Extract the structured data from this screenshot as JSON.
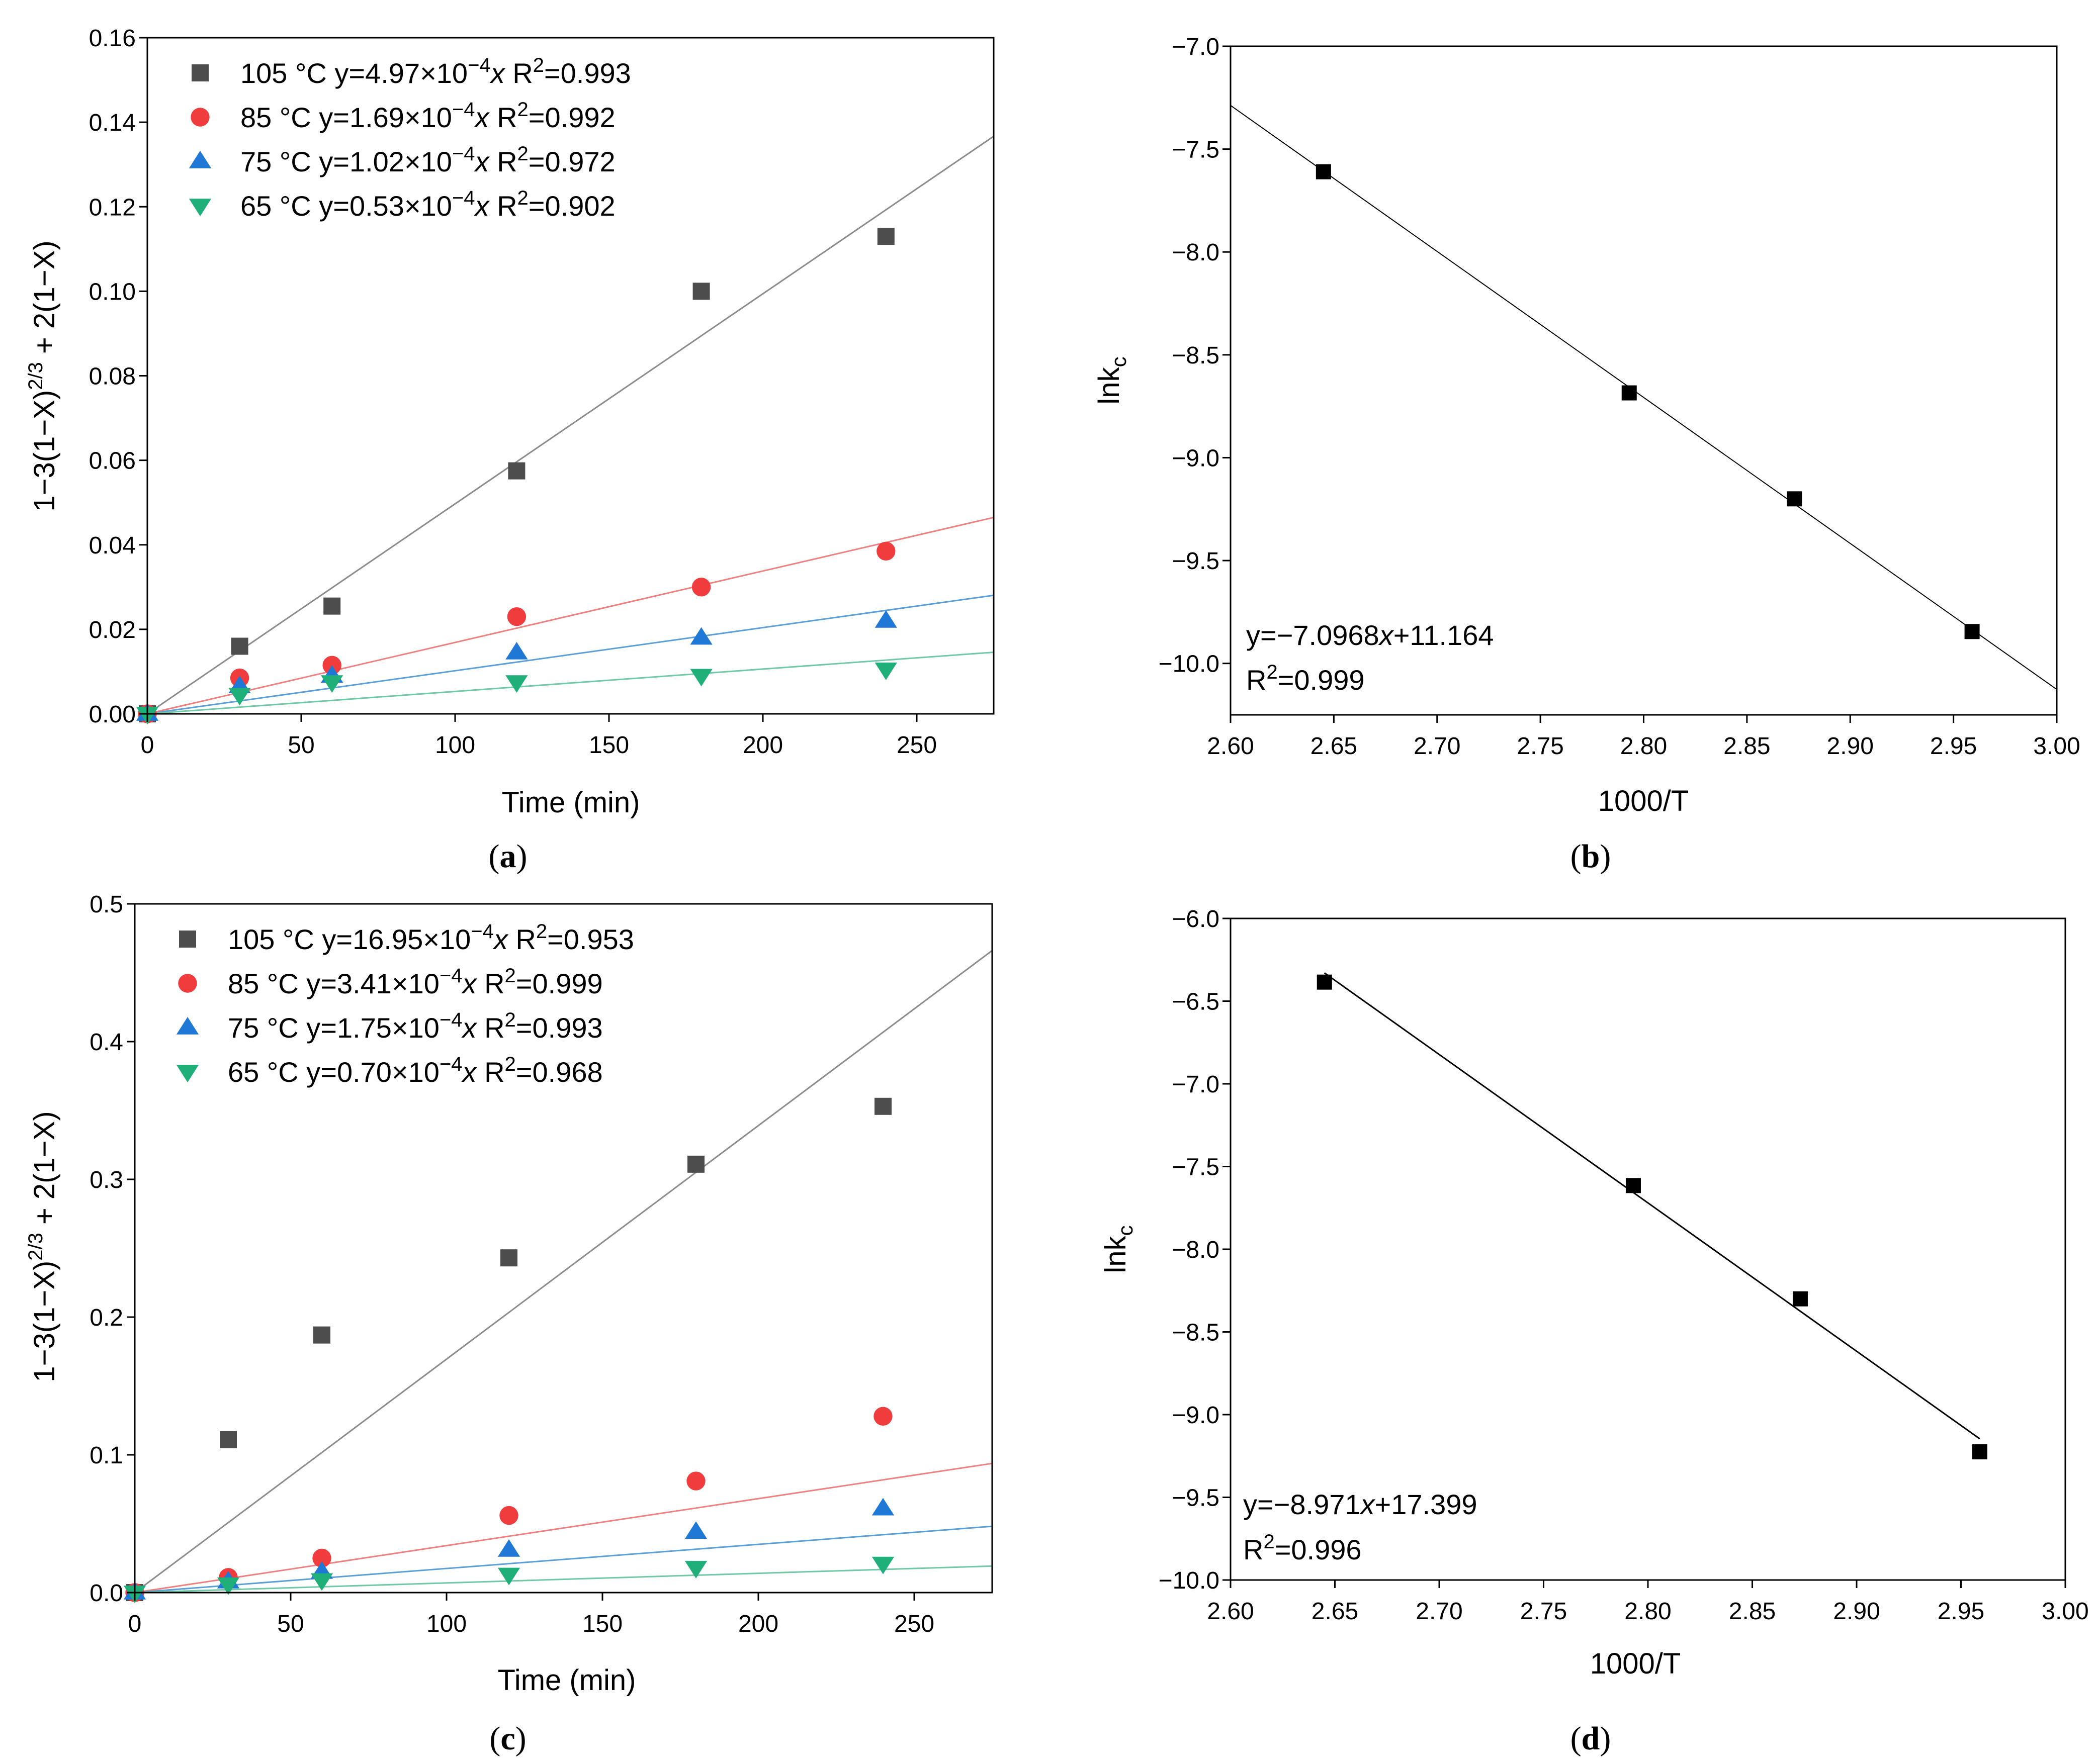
{
  "chart_data": [
    {
      "panel": "a",
      "type": "scatter",
      "caption": "(a)",
      "xlabel": "Time (min)",
      "ylabel": "1−3(1−X)2/3 + 2(1−X)",
      "xlim": [
        0,
        275
      ],
      "ylim": [
        0,
        0.16
      ],
      "xticks": [
        0,
        50,
        100,
        150,
        200,
        250
      ],
      "yticks": [
        0.0,
        0.02,
        0.04,
        0.06,
        0.08,
        0.1,
        0.12,
        0.14,
        0.16
      ],
      "xtick_labels": [
        "0",
        "50",
        "100",
        "150",
        "200",
        "250"
      ],
      "ytick_labels": [
        "0.00",
        "0.02",
        "0.04",
        "0.06",
        "0.08",
        "0.10",
        "0.12",
        "0.14",
        "0.16"
      ],
      "legend_position": "top-left",
      "series": [
        {
          "name": "105 °C",
          "label": "105 °C y=4.97×10⁻⁴x R²=0.993",
          "label_prefix": "105 °C y=4.97×10",
          "label_suffix": "x R",
          "label_tail": "=0.993",
          "marker": "square",
          "color": "#4d4d4d",
          "line_color": "#8c8c8c",
          "slope": 0.000497,
          "x": [
            0,
            30,
            60,
            120,
            180,
            240
          ],
          "y": [
            0,
            0.016,
            0.0255,
            0.0575,
            0.1,
            0.113
          ]
        },
        {
          "name": "85 °C",
          "label": "85 °C y=1.69×10⁻⁴x R²=0.992",
          "label_prefix": "85 °C y=1.69×10",
          "label_suffix": "x R",
          "label_tail": "=0.992",
          "marker": "circle",
          "color": "#f03c3c",
          "line_color": "#f08080",
          "slope": 0.000169,
          "x": [
            0,
            30,
            60,
            120,
            180,
            240
          ],
          "y": [
            0,
            0.0085,
            0.0115,
            0.023,
            0.03,
            0.0385
          ]
        },
        {
          "name": "75 °C",
          "label": "75 °C y=1.02×10⁻⁴x R²=0.972",
          "label_prefix": "75 °C y=1.02×10",
          "label_suffix": "x R",
          "label_tail": "=0.972",
          "marker": "triangle-up",
          "color": "#1f78d6",
          "line_color": "#5b9fd8",
          "slope": 0.000102,
          "x": [
            0,
            30,
            60,
            120,
            180,
            240
          ],
          "y": [
            0,
            0.0065,
            0.009,
            0.0145,
            0.018,
            0.022
          ]
        },
        {
          "name": "65 °C",
          "label": "65 °C y=0.53×10⁻⁴x R²=0.902",
          "label_prefix": "65 °C y=0.53×10",
          "label_suffix": "x R",
          "label_tail": "=0.902",
          "marker": "triangle-down",
          "color": "#1fb07a",
          "line_color": "#6fc9a4",
          "slope": 5.3e-05,
          "x": [
            0,
            30,
            60,
            120,
            180,
            240
          ],
          "y": [
            0,
            0.0045,
            0.0075,
            0.0075,
            0.009,
            0.0105
          ]
        }
      ]
    },
    {
      "panel": "b",
      "type": "scatter",
      "caption": "(b)",
      "xlabel": "1000/T",
      "ylabel": "lnkc",
      "xlim": [
        2.6,
        3.0
      ],
      "ylim": [
        -10.25,
        -7.0
      ],
      "xticks": [
        2.6,
        2.65,
        2.7,
        2.75,
        2.8,
        2.85,
        2.9,
        2.95,
        3.0
      ],
      "yticks": [
        -10.0,
        -9.5,
        -9.0,
        -8.5,
        -8.0,
        -7.5,
        -7.0
      ],
      "xtick_labels": [
        "2.60",
        "2.65",
        "2.70",
        "2.75",
        "2.80",
        "2.85",
        "2.90",
        "2.95",
        "3.00"
      ],
      "ytick_labels": [
        "−10.0",
        "−9.5",
        "−9.0",
        "−8.5",
        "−8.0",
        "−7.5",
        "−7.0"
      ],
      "x": [
        2.645,
        2.793,
        2.873,
        2.959
      ],
      "y": [
        -7.61,
        -8.685,
        -9.2,
        -9.845
      ],
      "fit": {
        "slope": -7.0968,
        "intercept": 11.164,
        "x_range": [
          2.6,
          3.0
        ]
      },
      "annotation": [
        "y=−7.0968x+11.164",
        "R²=0.999"
      ],
      "ann_line1_prefix": "y=−7.0968",
      "ann_line1_suffix": "+11.164",
      "ann_line2_prefix": "R",
      "ann_line2_suffix": "=0.999"
    },
    {
      "panel": "c",
      "type": "scatter",
      "caption": "(c)",
      "xlabel": "Time (min)",
      "ylabel": "1−3(1−X)2/3 + 2(1−X)",
      "xlim": [
        0,
        275
      ],
      "ylim": [
        0,
        0.5
      ],
      "xticks": [
        0,
        50,
        100,
        150,
        200,
        250
      ],
      "yticks": [
        0.0,
        0.1,
        0.2,
        0.3,
        0.4,
        0.5
      ],
      "xtick_labels": [
        "0",
        "50",
        "100",
        "150",
        "200",
        "250"
      ],
      "ytick_labels": [
        "0.0",
        "0.1",
        "0.2",
        "0.3",
        "0.4",
        "0.5"
      ],
      "legend_position": "top-left",
      "series": [
        {
          "name": "105 °C",
          "label": "105 °C y=16.95×10⁻⁴x R²=0.953",
          "label_prefix": "105 °C y=16.95×10",
          "label_suffix": "x R",
          "label_tail": "=0.953",
          "marker": "square",
          "color": "#4d4d4d",
          "line_color": "#8c8c8c",
          "slope": 0.001695,
          "x": [
            0,
            30,
            60,
            120,
            180,
            240
          ],
          "y": [
            0,
            0.111,
            0.187,
            0.243,
            0.311,
            0.353
          ]
        },
        {
          "name": "85 °C",
          "label": "85 °C y=3.41×10⁻⁴x R²=0.999",
          "label_prefix": "85 °C y=3.41×10",
          "label_suffix": "x R",
          "label_tail": "=0.999",
          "marker": "circle",
          "color": "#f03c3c",
          "line_color": "#f08080",
          "slope": 0.000341,
          "x": [
            0,
            30,
            60,
            120,
            180,
            240
          ],
          "y": [
            0,
            0.011,
            0.025,
            0.056,
            0.081,
            0.128
          ]
        },
        {
          "name": "75 °C",
          "label": "75 °C y=1.75×10⁻⁴x R²=0.993",
          "label_prefix": "75 °C y=1.75×10",
          "label_suffix": "x R",
          "label_tail": "=0.993",
          "marker": "triangle-up",
          "color": "#1f78d6",
          "line_color": "#5b9fd8",
          "slope": 0.000175,
          "x": [
            0,
            30,
            60,
            120,
            180,
            240
          ],
          "y": [
            0,
            0.008,
            0.015,
            0.031,
            0.044,
            0.061
          ]
        },
        {
          "name": "65 °C",
          "label": "65 °C y=0.70×10⁻⁴x R²=0.968",
          "label_prefix": "65 °C y=0.70×10",
          "label_suffix": "x R",
          "label_tail": "=0.968",
          "marker": "triangle-down",
          "color": "#1fb07a",
          "line_color": "#6fc9a4",
          "slope": 7e-05,
          "x": [
            0,
            30,
            60,
            120,
            180,
            240
          ],
          "y": [
            0,
            0.006,
            0.009,
            0.013,
            0.018,
            0.021
          ]
        }
      ]
    },
    {
      "panel": "d",
      "type": "scatter",
      "caption": "(d)",
      "xlabel": "1000/T",
      "ylabel": "lnkc",
      "xlim": [
        2.6,
        3.0
      ],
      "ylim": [
        -10.0,
        -6.0
      ],
      "xticks": [
        2.6,
        2.65,
        2.7,
        2.75,
        2.8,
        2.85,
        2.9,
        2.95,
        3.0
      ],
      "yticks": [
        -10.0,
        -9.5,
        -9.0,
        -8.5,
        -8.0,
        -7.5,
        -7.0,
        -6.5,
        -6.0
      ],
      "xtick_labels": [
        "2.60",
        "2.65",
        "2.70",
        "2.75",
        "2.80",
        "2.85",
        "2.90",
        "2.95",
        "3.00"
      ],
      "ytick_labels": [
        "−10.0",
        "−9.5",
        "−9.0",
        "−8.5",
        "−8.0",
        "−7.5",
        "−7.0",
        "−6.5",
        "−6.0"
      ],
      "x": [
        2.645,
        2.793,
        2.873,
        2.959
      ],
      "y": [
        -6.385,
        -7.615,
        -8.3,
        -9.225
      ],
      "fit": {
        "slope": -8.971,
        "intercept": 17.399,
        "x_range": [
          2.645,
          2.959
        ]
      },
      "annotation": [
        "y=−8.971x+17.399",
        "R²=0.996"
      ],
      "ann_line1_prefix": "y=−8.971",
      "ann_line1_suffix": "+17.399",
      "ann_line2_prefix": "R",
      "ann_line2_suffix": "=0.996"
    }
  ]
}
